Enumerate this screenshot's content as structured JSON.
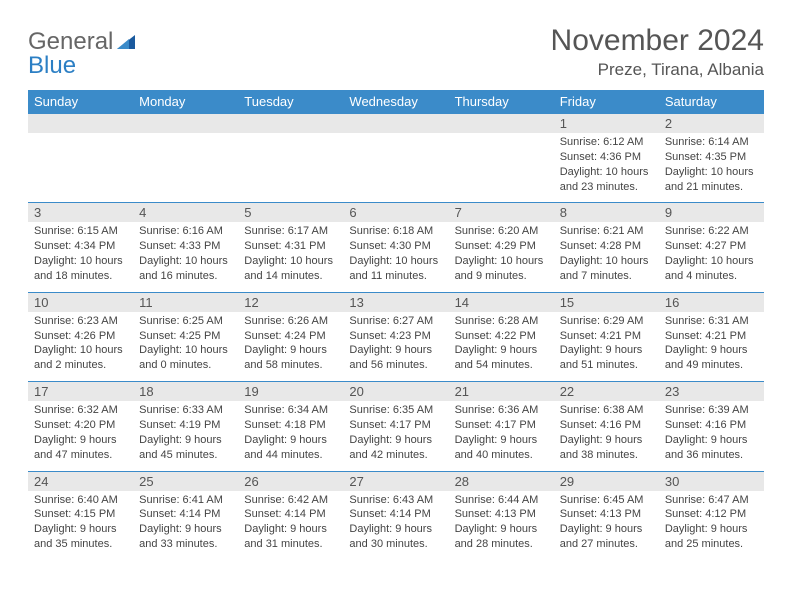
{
  "logo": {
    "part1": "General",
    "part2": "Blue"
  },
  "title": "November 2024",
  "location": "Preze, Tirana, Albania",
  "header_bg": "#3b8bc9",
  "daynum_bg": "#e8e8e8",
  "border_color": "#3b8bc9",
  "day_headers": [
    "Sunday",
    "Monday",
    "Tuesday",
    "Wednesday",
    "Thursday",
    "Friday",
    "Saturday"
  ],
  "weeks": [
    [
      null,
      null,
      null,
      null,
      null,
      {
        "d": "1",
        "sr": "Sunrise: 6:12 AM",
        "ss": "Sunset: 4:36 PM",
        "dl": "Daylight: 10 hours and 23 minutes."
      },
      {
        "d": "2",
        "sr": "Sunrise: 6:14 AM",
        "ss": "Sunset: 4:35 PM",
        "dl": "Daylight: 10 hours and 21 minutes."
      }
    ],
    [
      {
        "d": "3",
        "sr": "Sunrise: 6:15 AM",
        "ss": "Sunset: 4:34 PM",
        "dl": "Daylight: 10 hours and 18 minutes."
      },
      {
        "d": "4",
        "sr": "Sunrise: 6:16 AM",
        "ss": "Sunset: 4:33 PM",
        "dl": "Daylight: 10 hours and 16 minutes."
      },
      {
        "d": "5",
        "sr": "Sunrise: 6:17 AM",
        "ss": "Sunset: 4:31 PM",
        "dl": "Daylight: 10 hours and 14 minutes."
      },
      {
        "d": "6",
        "sr": "Sunrise: 6:18 AM",
        "ss": "Sunset: 4:30 PM",
        "dl": "Daylight: 10 hours and 11 minutes."
      },
      {
        "d": "7",
        "sr": "Sunrise: 6:20 AM",
        "ss": "Sunset: 4:29 PM",
        "dl": "Daylight: 10 hours and 9 minutes."
      },
      {
        "d": "8",
        "sr": "Sunrise: 6:21 AM",
        "ss": "Sunset: 4:28 PM",
        "dl": "Daylight: 10 hours and 7 minutes."
      },
      {
        "d": "9",
        "sr": "Sunrise: 6:22 AM",
        "ss": "Sunset: 4:27 PM",
        "dl": "Daylight: 10 hours and 4 minutes."
      }
    ],
    [
      {
        "d": "10",
        "sr": "Sunrise: 6:23 AM",
        "ss": "Sunset: 4:26 PM",
        "dl": "Daylight: 10 hours and 2 minutes."
      },
      {
        "d": "11",
        "sr": "Sunrise: 6:25 AM",
        "ss": "Sunset: 4:25 PM",
        "dl": "Daylight: 10 hours and 0 minutes."
      },
      {
        "d": "12",
        "sr": "Sunrise: 6:26 AM",
        "ss": "Sunset: 4:24 PM",
        "dl": "Daylight: 9 hours and 58 minutes."
      },
      {
        "d": "13",
        "sr": "Sunrise: 6:27 AM",
        "ss": "Sunset: 4:23 PM",
        "dl": "Daylight: 9 hours and 56 minutes."
      },
      {
        "d": "14",
        "sr": "Sunrise: 6:28 AM",
        "ss": "Sunset: 4:22 PM",
        "dl": "Daylight: 9 hours and 54 minutes."
      },
      {
        "d": "15",
        "sr": "Sunrise: 6:29 AM",
        "ss": "Sunset: 4:21 PM",
        "dl": "Daylight: 9 hours and 51 minutes."
      },
      {
        "d": "16",
        "sr": "Sunrise: 6:31 AM",
        "ss": "Sunset: 4:21 PM",
        "dl": "Daylight: 9 hours and 49 minutes."
      }
    ],
    [
      {
        "d": "17",
        "sr": "Sunrise: 6:32 AM",
        "ss": "Sunset: 4:20 PM",
        "dl": "Daylight: 9 hours and 47 minutes."
      },
      {
        "d": "18",
        "sr": "Sunrise: 6:33 AM",
        "ss": "Sunset: 4:19 PM",
        "dl": "Daylight: 9 hours and 45 minutes."
      },
      {
        "d": "19",
        "sr": "Sunrise: 6:34 AM",
        "ss": "Sunset: 4:18 PM",
        "dl": "Daylight: 9 hours and 44 minutes."
      },
      {
        "d": "20",
        "sr": "Sunrise: 6:35 AM",
        "ss": "Sunset: 4:17 PM",
        "dl": "Daylight: 9 hours and 42 minutes."
      },
      {
        "d": "21",
        "sr": "Sunrise: 6:36 AM",
        "ss": "Sunset: 4:17 PM",
        "dl": "Daylight: 9 hours and 40 minutes."
      },
      {
        "d": "22",
        "sr": "Sunrise: 6:38 AM",
        "ss": "Sunset: 4:16 PM",
        "dl": "Daylight: 9 hours and 38 minutes."
      },
      {
        "d": "23",
        "sr": "Sunrise: 6:39 AM",
        "ss": "Sunset: 4:16 PM",
        "dl": "Daylight: 9 hours and 36 minutes."
      }
    ],
    [
      {
        "d": "24",
        "sr": "Sunrise: 6:40 AM",
        "ss": "Sunset: 4:15 PM",
        "dl": "Daylight: 9 hours and 35 minutes."
      },
      {
        "d": "25",
        "sr": "Sunrise: 6:41 AM",
        "ss": "Sunset: 4:14 PM",
        "dl": "Daylight: 9 hours and 33 minutes."
      },
      {
        "d": "26",
        "sr": "Sunrise: 6:42 AM",
        "ss": "Sunset: 4:14 PM",
        "dl": "Daylight: 9 hours and 31 minutes."
      },
      {
        "d": "27",
        "sr": "Sunrise: 6:43 AM",
        "ss": "Sunset: 4:14 PM",
        "dl": "Daylight: 9 hours and 30 minutes."
      },
      {
        "d": "28",
        "sr": "Sunrise: 6:44 AM",
        "ss": "Sunset: 4:13 PM",
        "dl": "Daylight: 9 hours and 28 minutes."
      },
      {
        "d": "29",
        "sr": "Sunrise: 6:45 AM",
        "ss": "Sunset: 4:13 PM",
        "dl": "Daylight: 9 hours and 27 minutes."
      },
      {
        "d": "30",
        "sr": "Sunrise: 6:47 AM",
        "ss": "Sunset: 4:12 PM",
        "dl": "Daylight: 9 hours and 25 minutes."
      }
    ]
  ]
}
